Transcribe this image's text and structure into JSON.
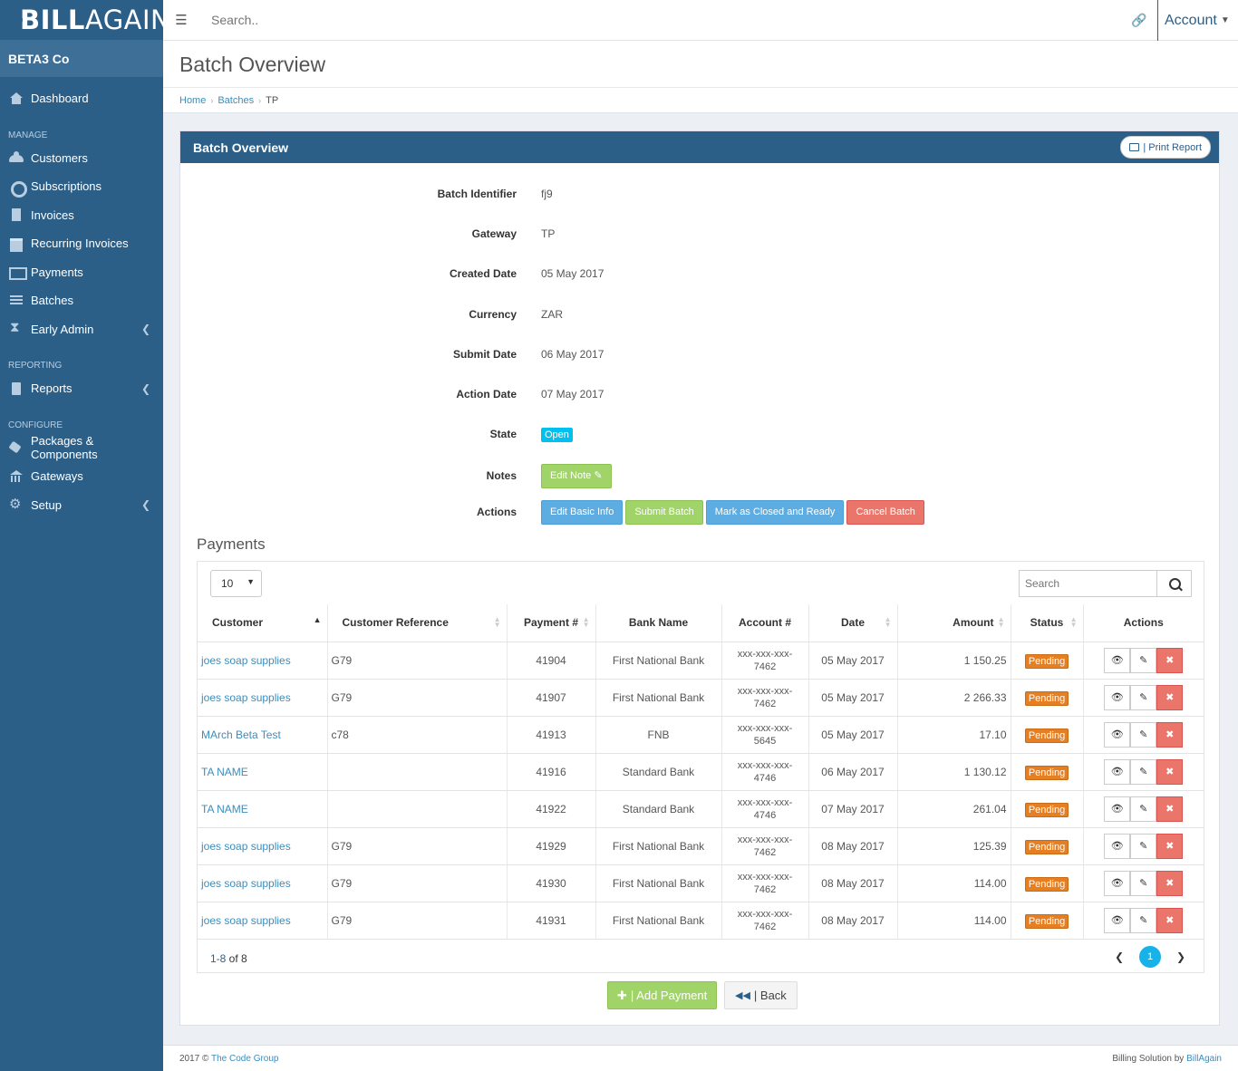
{
  "brand": {
    "bold": "BILL",
    "light": "AGAIN"
  },
  "company": "BETA3 Co",
  "nav": {
    "dashboard": "Dashboard",
    "manage_header": "MANAGE",
    "customers": "Customers",
    "subscriptions": "Subscriptions",
    "invoices": "Invoices",
    "recurring": "Recurring Invoices",
    "payments": "Payments",
    "batches": "Batches",
    "early_admin": "Early Admin",
    "reporting_header": "REPORTING",
    "reports": "Reports",
    "configure_header": "CONFIGURE",
    "packages": "Packages & Components",
    "gateways": "Gateways",
    "setup": "Setup"
  },
  "topbar": {
    "search_placeholder": "Search..",
    "account": "Account"
  },
  "page_title": "Batch Overview",
  "breadcrumb": {
    "home": "Home",
    "batches": "Batches",
    "current": "TP"
  },
  "box": {
    "title": "Batch Overview",
    "print": "| Print Report"
  },
  "batch": {
    "identifier_label": "Batch Identifier",
    "identifier": "fj9",
    "gateway_label": "Gateway",
    "gateway": "TP",
    "created_label": "Created Date",
    "created": "05 May 2017",
    "currency_label": "Currency",
    "currency": "ZAR",
    "submit_label": "Submit Date",
    "submit": "06 May 2017",
    "action_label": "Action Date",
    "action": "07 May 2017",
    "state_label": "State",
    "state": "Open",
    "notes_label": "Notes",
    "edit_note": "Edit Note",
    "actions_label": "Actions",
    "btn_edit": "Edit Basic Info",
    "btn_submit": "Submit Batch",
    "btn_close": "Mark as Closed and Ready",
    "btn_cancel": "Cancel Batch"
  },
  "payments": {
    "title": "Payments",
    "length": "10",
    "search_placeholder": "Search",
    "columns": [
      "Customer",
      "Customer Reference",
      "Payment #",
      "Bank Name",
      "Account #",
      "Date",
      "Amount",
      "Status",
      "Actions"
    ],
    "rows": [
      {
        "customer": "joes soap supplies",
        "ref": "G79",
        "num": "41904",
        "bank": "First National Bank",
        "acc1": "xxx-xxx-xxx-",
        "acc2": "7462",
        "date": "05 May 2017",
        "amount": "1 150.25",
        "status": "Pending"
      },
      {
        "customer": "joes soap supplies",
        "ref": "G79",
        "num": "41907",
        "bank": "First National Bank",
        "acc1": "xxx-xxx-xxx-",
        "acc2": "7462",
        "date": "05 May 2017",
        "amount": "2 266.33",
        "status": "Pending"
      },
      {
        "customer": "MArch Beta Test",
        "ref": "c78",
        "num": "41913",
        "bank": "FNB",
        "acc1": "xxx-xxx-xxx-",
        "acc2": "5645",
        "date": "05 May 2017",
        "amount": "17.10",
        "status": "Pending"
      },
      {
        "customer": "TA NAME",
        "ref": "",
        "num": "41916",
        "bank": "Standard Bank",
        "acc1": "xxx-xxx-xxx-",
        "acc2": "4746",
        "date": "06 May 2017",
        "amount": "1 130.12",
        "status": "Pending"
      },
      {
        "customer": "TA NAME",
        "ref": "",
        "num": "41922",
        "bank": "Standard Bank",
        "acc1": "xxx-xxx-xxx-",
        "acc2": "4746",
        "date": "07 May 2017",
        "amount": "261.04",
        "status": "Pending"
      },
      {
        "customer": "joes soap supplies",
        "ref": "G79",
        "num": "41929",
        "bank": "First National Bank",
        "acc1": "xxx-xxx-xxx-",
        "acc2": "7462",
        "date": "08 May 2017",
        "amount": "125.39",
        "status": "Pending"
      },
      {
        "customer": "joes soap supplies",
        "ref": "G79",
        "num": "41930",
        "bank": "First National Bank",
        "acc1": "xxx-xxx-xxx-",
        "acc2": "7462",
        "date": "08 May 2017",
        "amount": "114.00",
        "status": "Pending"
      },
      {
        "customer": "joes soap supplies",
        "ref": "G79",
        "num": "41931",
        "bank": "First National Bank",
        "acc1": "xxx-xxx-xxx-",
        "acc2": "7462",
        "date": "08 May 2017",
        "amount": "114.00",
        "status": "Pending"
      }
    ],
    "count_range": "1-8",
    "count_of": " of 8",
    "page": "1"
  },
  "buttons": {
    "add_payment": "| Add Payment",
    "back": "| Back"
  },
  "footer": {
    "left_prefix": "2017 © ",
    "left_link": "The Code Group",
    "right_prefix": "Billing Solution by ",
    "right_link": "BillAgain"
  }
}
